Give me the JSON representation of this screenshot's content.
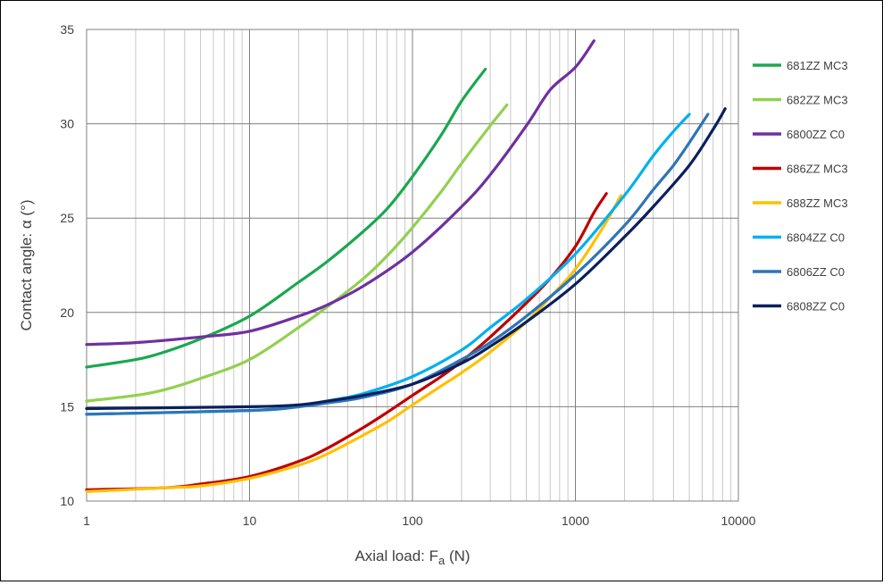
{
  "chart_data": {
    "type": "line",
    "title": "",
    "xlabel": "Axial load: F",
    "xlabel_sub": "a",
    "xlabel_unit": " (N)",
    "ylabel": "Contact angle: α (°)",
    "xscale": "log",
    "xlim": [
      1,
      10000
    ],
    "ylim": [
      10,
      35
    ],
    "x_ticks": [
      1,
      10,
      100,
      1000,
      10000
    ],
    "x_tick_labels": [
      "1",
      "10",
      "100",
      "1000",
      "10000"
    ],
    "y_ticks": [
      10,
      15,
      20,
      25,
      30,
      35
    ],
    "y_tick_labels": [
      "10",
      "15",
      "20",
      "25",
      "30",
      "35"
    ],
    "grid": true,
    "minor_grid_x": true,
    "legend_position": "right",
    "series": [
      {
        "name": "681ZZ MC3",
        "color": "#1aa850",
        "x": [
          1,
          2,
          3,
          5,
          10,
          20,
          30,
          50,
          70,
          100,
          150,
          200,
          280
        ],
        "y": [
          17.1,
          17.5,
          17.9,
          18.6,
          19.8,
          21.6,
          22.7,
          24.3,
          25.5,
          27.2,
          29.4,
          31.2,
          32.9
        ]
      },
      {
        "name": "682ZZ MC3",
        "color": "#92d050",
        "x": [
          1,
          2,
          3,
          5,
          10,
          20,
          30,
          50,
          70,
          100,
          150,
          200,
          300,
          380
        ],
        "y": [
          15.3,
          15.6,
          15.9,
          16.5,
          17.5,
          19.2,
          20.3,
          21.8,
          23.0,
          24.5,
          26.4,
          27.9,
          29.9,
          31.0
        ]
      },
      {
        "name": "6800ZZ C0",
        "color": "#7030a0",
        "x": [
          1,
          2,
          5,
          10,
          20,
          30,
          50,
          100,
          200,
          300,
          500,
          700,
          1000,
          1300
        ],
        "y": [
          18.3,
          18.4,
          18.7,
          19.0,
          19.8,
          20.4,
          21.4,
          23.2,
          25.6,
          27.3,
          29.9,
          31.8,
          33.0,
          34.4
        ]
      },
      {
        "name": "686ZZ MC3",
        "color": "#c00000",
        "x": [
          1,
          3,
          5,
          10,
          20,
          30,
          50,
          70,
          100,
          150,
          200,
          300,
          500,
          700,
          1000,
          1300,
          1550
        ],
        "y": [
          10.6,
          10.7,
          10.9,
          11.3,
          12.1,
          12.8,
          13.9,
          14.7,
          15.6,
          16.6,
          17.4,
          18.7,
          20.5,
          21.8,
          23.5,
          25.3,
          26.3
        ]
      },
      {
        "name": "688ZZ MC3",
        "color": "#ffc000",
        "x": [
          1,
          3,
          5,
          10,
          20,
          30,
          50,
          70,
          100,
          150,
          200,
          300,
          500,
          700,
          1000,
          1500,
          1900
        ],
        "y": [
          10.5,
          10.7,
          10.8,
          11.2,
          11.9,
          12.5,
          13.5,
          14.2,
          15.1,
          16.1,
          16.8,
          17.9,
          19.5,
          20.8,
          22.3,
          24.6,
          26.2
        ]
      },
      {
        "name": "6804ZZ C0",
        "color": "#00b0f0",
        "x": [
          1,
          10,
          20,
          30,
          50,
          100,
          200,
          300,
          500,
          1000,
          2000,
          3000,
          4000,
          5000
        ],
        "y": [
          14.6,
          14.8,
          15.0,
          15.3,
          15.7,
          16.6,
          18.0,
          19.2,
          20.7,
          23.1,
          26.2,
          28.3,
          29.6,
          30.5
        ]
      },
      {
        "name": "6806ZZ C0",
        "color": "#2e75b6",
        "x": [
          1,
          10,
          20,
          30,
          50,
          100,
          200,
          300,
          500,
          1000,
          2000,
          3000,
          4000,
          5000,
          6500
        ],
        "y": [
          14.6,
          14.8,
          15.0,
          15.2,
          15.5,
          16.2,
          17.5,
          18.4,
          19.8,
          22.0,
          24.6,
          26.5,
          27.8,
          29.0,
          30.5
        ]
      },
      {
        "name": "6808ZZ C0",
        "color": "#0b1f5c",
        "x": [
          1,
          10,
          20,
          30,
          50,
          100,
          200,
          300,
          500,
          1000,
          2000,
          3000,
          5000,
          7000,
          8300
        ],
        "y": [
          14.9,
          15.0,
          15.1,
          15.3,
          15.6,
          16.2,
          17.3,
          18.2,
          19.5,
          21.5,
          24.0,
          25.6,
          27.8,
          29.7,
          30.8
        ]
      }
    ]
  }
}
